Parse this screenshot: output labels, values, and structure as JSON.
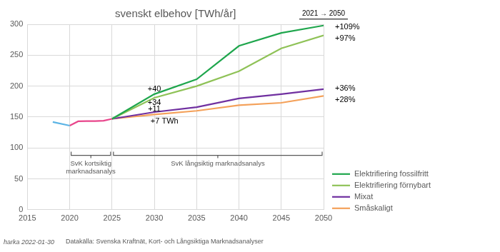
{
  "chart_data": {
    "type": "line",
    "title": "svenskt elbehov [TWh/år]",
    "xlim": [
      2015,
      2050
    ],
    "xticks": [
      2015,
      2020,
      2025,
      2030,
      2035,
      2040,
      2045,
      2050
    ],
    "ylim": [
      0,
      300
    ],
    "yticks": [
      0,
      50,
      100,
      150,
      200,
      250,
      300
    ],
    "grid": true,
    "legend": "right",
    "series": [
      {
        "color": "#5bb4e5",
        "x": [
          2018,
          2020
        ],
        "values": [
          142,
          136
        ]
      },
      {
        "color": "#e8458b",
        "x": [
          2020,
          2021,
          2022,
          2023,
          2024,
          2025
        ],
        "values": [
          136,
          143,
          143.5,
          143.5,
          144,
          147
        ]
      },
      {
        "name": "Elektrifiering fossilfritt",
        "color": "#1fa64d",
        "x": [
          2025,
          2030,
          2035,
          2040,
          2045,
          2050
        ],
        "values": [
          147,
          187,
          211,
          265,
          286,
          298
        ]
      },
      {
        "name": "Elektrifiering förnybart",
        "color": "#8fc257",
        "x": [
          2025,
          2030,
          2035,
          2040,
          2045,
          2050
        ],
        "values": [
          147,
          181,
          200,
          224,
          261,
          282
        ]
      },
      {
        "name": "Mixat",
        "color": "#7030a0",
        "x": [
          2025,
          2030,
          2035,
          2040,
          2045,
          2050
        ],
        "values": [
          147,
          158,
          166,
          180,
          187,
          195
        ]
      },
      {
        "name": "Småskaligt",
        "color": "#f4a15a",
        "x": [
          2025,
          2030,
          2035,
          2040,
          2045,
          2050
        ],
        "values": [
          147,
          154,
          160,
          169,
          173,
          184
        ]
      }
    ],
    "annotations": [
      {
        "text": "+40",
        "x": 2030,
        "y": 195
      },
      {
        "text": "+34",
        "x": 2030,
        "y": 173
      },
      {
        "text": "+11",
        "x": 2030,
        "y": 163
      },
      {
        "text": "+7 TWh",
        "x": 2031.2,
        "y": 143
      }
    ],
    "end_labels": [
      {
        "text": "+109%",
        "x": 2050,
        "y": 295
      },
      {
        "text": "+97%",
        "x": 2050,
        "y": 277
      },
      {
        "text": "+36%",
        "x": 2050,
        "y": 196
      },
      {
        "text": "+28%",
        "x": 2050,
        "y": 178
      }
    ],
    "end_header": {
      "text": "2021 → 2050",
      "x": 2050,
      "y": 317
    },
    "spans": [
      {
        "text": "SvK kortsiktig marknadsanalys",
        "from": 2020,
        "to": 2025,
        "y": 88
      },
      {
        "text": "SvK långsiktig marknadsanalys",
        "from": 2025,
        "to": 2050,
        "y": 88
      }
    ],
    "credit": "harka 2022-01-30",
    "source": "Datakälla: Svenska Kraftnät, Kort- och Långsiktiga Marknadsanalyser"
  }
}
